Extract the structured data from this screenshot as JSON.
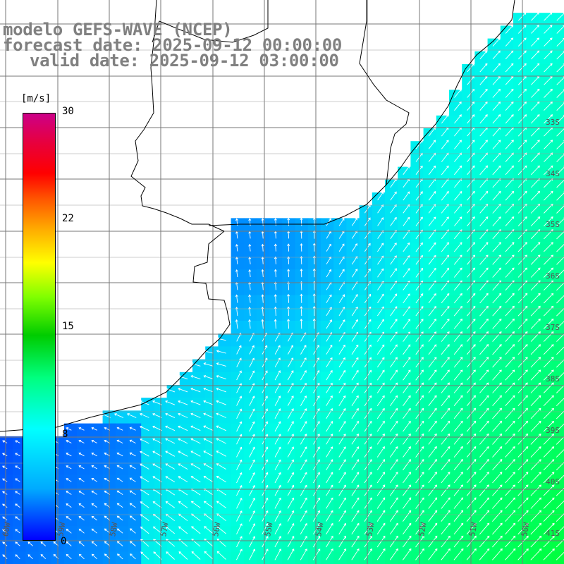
{
  "titles": {
    "line1": "modelo GEFS-WAVE (NCEP)",
    "line2": "forecast date: 2025-09-12 00:00:00",
    "line3": "valid date: 2025-09-12 03:00:00"
  },
  "colorbar": {
    "unit": "[m/s]",
    "tick_30": "30",
    "tick_22": "22",
    "tick_15": "15",
    "tick_8": "8",
    "tick_0": "0",
    "colors": [
      "#0000ff",
      "#00aaff",
      "#00ffff",
      "#00ff80",
      "#00cc00",
      "#ffff00",
      "#ff0000",
      "#cc0088"
    ]
  },
  "lat_labels": [
    "33S",
    "34S",
    "35S",
    "36S",
    "37S",
    "38S",
    "39S",
    "40S",
    "41S"
  ],
  "lon_labels": [
    "60W",
    "59W",
    "58W",
    "57W",
    "56W",
    "55W",
    "54W",
    "53W",
    "52W",
    "51W",
    "50W"
  ],
  "wind_field": {
    "variable": "wind speed",
    "units": "m/s",
    "range": [
      0,
      30
    ],
    "notes_visible": "speeds approx 1-11 m/s; weakest near coast and estuary, strongest to SE"
  }
}
